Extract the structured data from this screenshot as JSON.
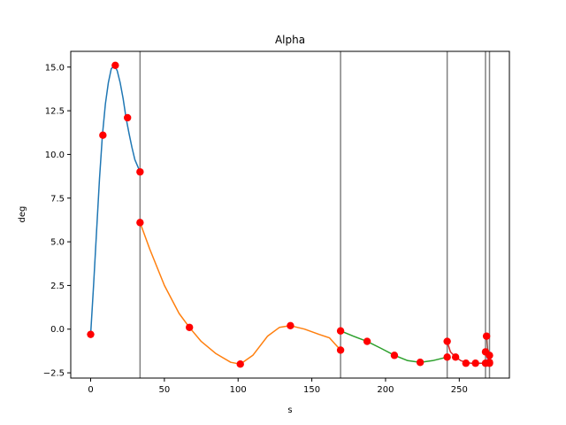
{
  "chart_data": {
    "type": "line",
    "title": "Alpha",
    "xlabel": "s",
    "ylabel": "deg",
    "xlim": [
      -13.5,
      284
    ],
    "ylim": [
      -2.8,
      15.9
    ],
    "xticks": [
      0,
      50,
      100,
      150,
      200,
      250
    ],
    "xtick_labels": [
      "0",
      "50",
      "100",
      "150",
      "200",
      "250"
    ],
    "yticks": [
      -2.5,
      0.0,
      2.5,
      5.0,
      7.5,
      10.0,
      12.5,
      15.0
    ],
    "ytick_labels": [
      "−2.5",
      "0.0",
      "2.5",
      "5.0",
      "7.5",
      "10.0",
      "12.5",
      "15.0"
    ],
    "grid": false,
    "vertical_lines": {
      "x": [
        33.5,
        169.5,
        241.8,
        267.8,
        270.5
      ],
      "color": "#808080"
    },
    "series": [
      {
        "color": "#1f77b4",
        "x": [
          0,
          2,
          4,
          6,
          8,
          10,
          12,
          14,
          16,
          18,
          20,
          22,
          24,
          26,
          28,
          30,
          33.5
        ],
        "y": [
          -0.3,
          2.5,
          5.6,
          8.6,
          11.1,
          12.9,
          14.1,
          14.9,
          15.1,
          14.8,
          14.1,
          13.2,
          12.1,
          11.2,
          10.4,
          9.7,
          9.0
        ]
      },
      {
        "color": "#ff7f0e",
        "x": [
          33.5,
          40,
          50,
          60,
          67,
          75,
          85,
          95,
          101.5,
          110,
          120,
          128,
          135.5,
          145,
          155,
          162,
          169.5
        ],
        "y": [
          6.1,
          4.6,
          2.5,
          0.9,
          0.1,
          -0.7,
          -1.4,
          -1.9,
          -2.0,
          -1.5,
          -0.4,
          0.1,
          0.2,
          0.0,
          -0.3,
          -0.5,
          -1.2
        ]
      },
      {
        "color": "#2ca02c",
        "x": [
          169.5,
          178,
          187.5,
          197,
          206,
          215,
          223.5,
          232,
          241.8
        ],
        "y": [
          -0.1,
          -0.4,
          -0.7,
          -1.1,
          -1.5,
          -1.8,
          -1.9,
          -1.8,
          -1.6
        ]
      },
      {
        "color": "#d62728",
        "x": [
          241.8,
          244,
          247.5,
          251,
          254.5,
          258,
          261,
          264,
          267.8
        ],
        "y": [
          -0.7,
          -1.3,
          -1.6,
          -1.8,
          -1.9,
          -1.95,
          -1.95,
          -1.95,
          -1.95
        ]
      },
      {
        "color": "#9467bd",
        "x": [
          267.8,
          268.5,
          269.2,
          270.5
        ],
        "y": [
          -1.3,
          -1.5,
          -1.7,
          -1.8
        ]
      },
      {
        "color": "#8c564b",
        "x": [
          268.5,
          269.3,
          270.0,
          270.5
        ],
        "y": [
          -0.4,
          -1.2,
          -1.7,
          -1.9
        ]
      }
    ],
    "markers": {
      "color": "#ff0000",
      "points": [
        [
          0,
          -0.3
        ],
        [
          8.3,
          11.1
        ],
        [
          16.7,
          15.1
        ],
        [
          25,
          12.1
        ],
        [
          33.5,
          9.0
        ],
        [
          33.5,
          6.1
        ],
        [
          67,
          0.1
        ],
        [
          101.5,
          -2.0
        ],
        [
          135.5,
          0.2
        ],
        [
          169.5,
          -1.2
        ],
        [
          169.5,
          -0.1
        ],
        [
          187.5,
          -0.7
        ],
        [
          206,
          -1.5
        ],
        [
          223.5,
          -1.9
        ],
        [
          241.8,
          -1.6
        ],
        [
          241.8,
          -0.7
        ],
        [
          247.5,
          -1.6
        ],
        [
          254.5,
          -1.95
        ],
        [
          261,
          -1.95
        ],
        [
          267.8,
          -1.95
        ],
        [
          267.8,
          -1.3
        ],
        [
          270.5,
          -1.5
        ],
        [
          270.5,
          -1.95
        ],
        [
          268.5,
          -0.4
        ],
        [
          270.5,
          -1.9
        ]
      ]
    }
  }
}
